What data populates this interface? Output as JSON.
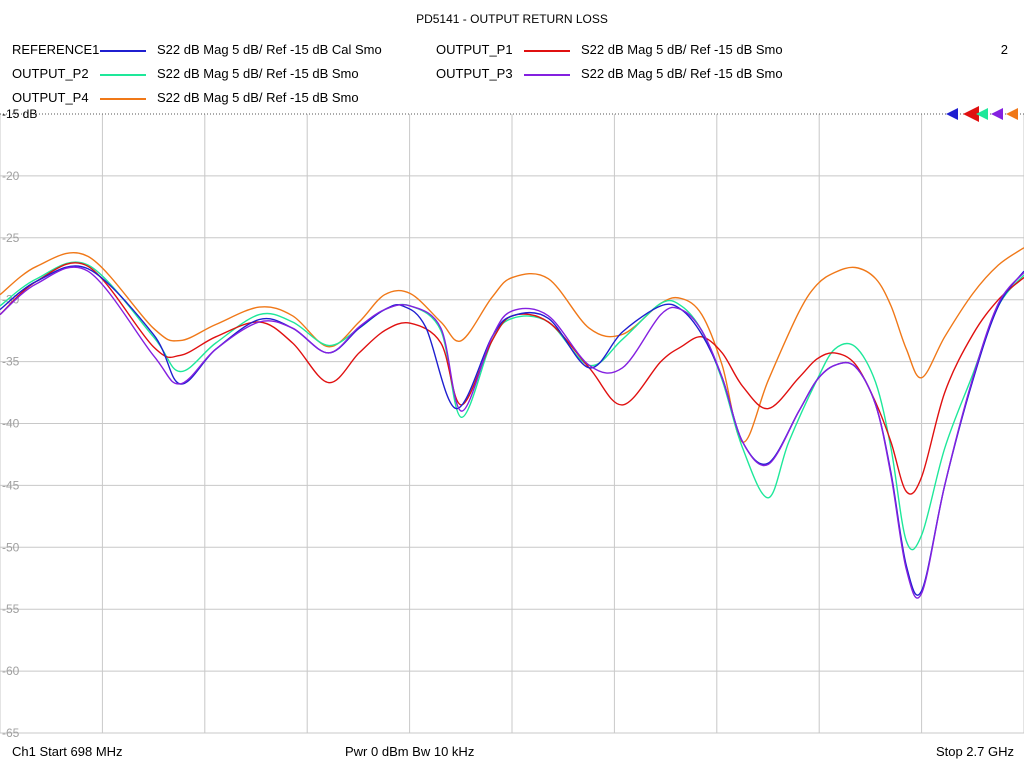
{
  "chart_data": {
    "type": "line",
    "title": "PD5141 - OUTPUT RETURN LOSS",
    "xlabel": "",
    "ylabel": "",
    "x_range_mhz": [
      698,
      2700
    ],
    "ylim": [
      -65,
      -15
    ],
    "y_ticks": [
      -15,
      -20,
      -25,
      -30,
      -35,
      -40,
      -45,
      -50,
      -55,
      -60,
      -65
    ],
    "y_tick_labels": [
      "-15 dB",
      "-20",
      "-25",
      "-30",
      "-35",
      "-40",
      "-45",
      "-50",
      "-55",
      "-60",
      "-65"
    ],
    "grid": true,
    "legend_position": "top",
    "series": [
      {
        "name": "REFERENCE1",
        "desc": "S22  dB Mag  5 dB/ Ref -15 dB  Cal Smo",
        "color": "#1f1fd0",
        "x": [
          698,
          770,
          870,
          998,
          1050,
          1120,
          1205,
          1270,
          1340,
          1400,
          1450,
          1485,
          1530,
          1590,
          1660,
          1700,
          1770,
          1850,
          1915,
          1990,
          2030,
          2070,
          2110,
          2150,
          2200,
          2260,
          2295,
          2330,
          2370,
          2410,
          2440,
          2470,
          2500,
          2545,
          2600,
          2650,
          2700
        ],
        "y": [
          -30.8,
          -28.5,
          -27.5,
          -32.8,
          -36.8,
          -34,
          -31.6,
          -32.3,
          -34.3,
          -32.3,
          -30.8,
          -30.5,
          -32.2,
          -38.8,
          -33,
          -31.3,
          -31.5,
          -35.5,
          -32.6,
          -30.5,
          -30.8,
          -32.8,
          -36.3,
          -41.5,
          -43.2,
          -39,
          -36.5,
          -35.3,
          -35.4,
          -38.5,
          -44,
          -51.5,
          -53.5,
          -45,
          -36.5,
          -30.5,
          -27.7
        ]
      },
      {
        "name": "OUTPUT_P1",
        "desc": "S22  dB Mag  5 dB/ Ref -15 dB  Smo",
        "color": "#e01010",
        "x": [
          698,
          770,
          870,
          998,
          1050,
          1120,
          1205,
          1270,
          1340,
          1400,
          1450,
          1500,
          1560,
          1600,
          1660,
          1700,
          1770,
          1850,
          1915,
          1990,
          2030,
          2070,
          2110,
          2150,
          2200,
          2260,
          2295,
          2330,
          2370,
          2410,
          2440,
          2470,
          2500,
          2545,
          2600,
          2650,
          2700
        ],
        "y": [
          -31.2,
          -28.5,
          -27.3,
          -33.8,
          -34.5,
          -33,
          -31.8,
          -33.5,
          -36.7,
          -34.3,
          -32.5,
          -31.9,
          -33.5,
          -38.5,
          -33.3,
          -31.3,
          -31.8,
          -35.5,
          -38.5,
          -35,
          -33.8,
          -33,
          -34.3,
          -37,
          -38.8,
          -36.3,
          -34.8,
          -34.3,
          -35.2,
          -38.3,
          -41.5,
          -45.5,
          -44.3,
          -37.5,
          -32.8,
          -30,
          -28.2
        ]
      },
      {
        "name": "OUTPUT_P2",
        "desc": "S22  dB Mag  5 dB/ Ref -15 dB  Smo",
        "color": "#1ee89a",
        "x": [
          698,
          770,
          870,
          998,
          1050,
          1120,
          1205,
          1270,
          1340,
          1400,
          1450,
          1500,
          1560,
          1600,
          1660,
          1700,
          1770,
          1850,
          1915,
          1990,
          2030,
          2070,
          2110,
          2150,
          2200,
          2240,
          2295,
          2330,
          2370,
          2410,
          2440,
          2470,
          2500,
          2545,
          2600,
          2650,
          2700
        ],
        "y": [
          -30.5,
          -28.3,
          -27.2,
          -33,
          -35.8,
          -33.5,
          -31.2,
          -31.8,
          -33.7,
          -32.3,
          -30.8,
          -30.5,
          -32.5,
          -39.5,
          -33.3,
          -31.5,
          -31.8,
          -35.3,
          -33.2,
          -30.3,
          -30.5,
          -32.5,
          -36.5,
          -42,
          -46,
          -41.5,
          -36.5,
          -34,
          -33.8,
          -36.7,
          -42,
          -49.5,
          -49,
          -42,
          -36,
          -30.5,
          -28
        ]
      },
      {
        "name": "OUTPUT_P3",
        "desc": "S22  dB Mag  5 dB/ Ref -15 dB  Smo",
        "color": "#8420e0",
        "x": [
          698,
          770,
          870,
          998,
          1050,
          1120,
          1205,
          1270,
          1340,
          1400,
          1450,
          1500,
          1560,
          1600,
          1660,
          1700,
          1770,
          1850,
          1915,
          1990,
          2030,
          2070,
          2110,
          2150,
          2200,
          2260,
          2295,
          2330,
          2370,
          2410,
          2440,
          2470,
          2500,
          2545,
          2600,
          2650,
          2700
        ],
        "y": [
          -31.2,
          -28.7,
          -27.7,
          -34.5,
          -36.8,
          -34,
          -31.8,
          -32.3,
          -34.3,
          -32.2,
          -30.8,
          -30.5,
          -32.3,
          -39,
          -33,
          -30.9,
          -31.3,
          -35.3,
          -35.5,
          -31.2,
          -30.8,
          -32.5,
          -36.3,
          -41.5,
          -43.3,
          -39,
          -36.5,
          -35.3,
          -35.4,
          -38.5,
          -44.2,
          -51.8,
          -53.7,
          -45,
          -36.3,
          -30.3,
          -27.8
        ]
      },
      {
        "name": "OUTPUT_P4",
        "desc": "S22  dB Mag  5 dB/ Ref -15 dB  Smo",
        "color": "#f07818",
        "x": [
          698,
          770,
          870,
          998,
          1050,
          1120,
          1205,
          1270,
          1340,
          1400,
          1450,
          1500,
          1560,
          1600,
          1660,
          1700,
          1770,
          1850,
          1915,
          1990,
          2030,
          2070,
          2110,
          2150,
          2200,
          2260,
          2295,
          2330,
          2370,
          2410,
          2440,
          2470,
          2500,
          2545,
          2600,
          2650,
          2700
        ],
        "y": [
          -29.6,
          -27.3,
          -26.5,
          -32.3,
          -33.3,
          -32,
          -30.6,
          -31.3,
          -33.8,
          -31.8,
          -29.6,
          -29.5,
          -31.8,
          -33.3,
          -29.8,
          -28.2,
          -28.3,
          -32.3,
          -32.8,
          -30.3,
          -29.9,
          -31.2,
          -35.3,
          -41.5,
          -36.5,
          -31,
          -28.8,
          -27.8,
          -27.4,
          -28.3,
          -30.5,
          -34,
          -36.3,
          -33,
          -29.5,
          -27.2,
          -25.8
        ]
      }
    ]
  },
  "header": {
    "channel_number": "2"
  },
  "footer": {
    "left": "Ch1  Start  698 MHz",
    "middle": "Pwr  0 dBm  Bw  10 kHz",
    "right": "Stop  2.7 GHz"
  }
}
